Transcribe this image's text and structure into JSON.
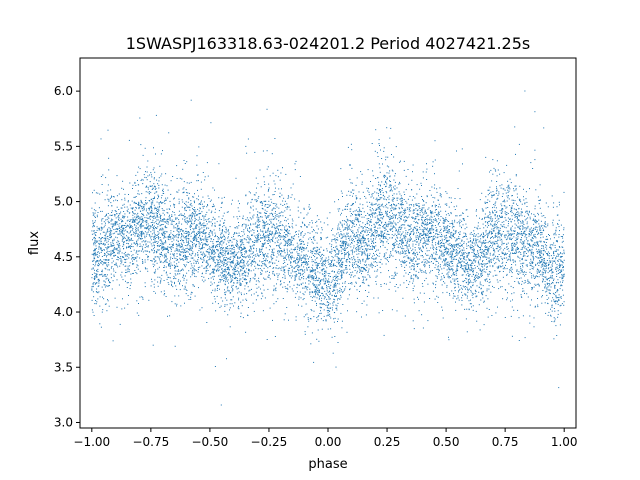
{
  "chart_data": {
    "type": "scatter",
    "title": "1SWASPJ163318.63-024201.2 Period 4027421.25s",
    "xlabel": "phase",
    "ylabel": "flux",
    "xlim": [
      -1.05,
      1.05
    ],
    "ylim": [
      2.95,
      6.3
    ],
    "x_ticks": [
      -1.0,
      -0.75,
      -0.5,
      -0.25,
      0.0,
      0.25,
      0.5,
      0.75,
      1.0
    ],
    "x_tick_labels": [
      "−1.00",
      "−0.75",
      "−0.50",
      "−0.25",
      "0.00",
      "0.25",
      "0.50",
      "0.75",
      "1.00"
    ],
    "y_ticks": [
      3.0,
      3.5,
      4.0,
      4.5,
      5.0,
      5.5,
      6.0
    ],
    "y_tick_labels": [
      "3.0",
      "3.5",
      "4.0",
      "4.5",
      "5.0",
      "5.5",
      "6.0"
    ],
    "grid": false,
    "legend": "none",
    "marker_color": "#1f77b4",
    "series": [
      {
        "phase_bins": [
          -1.0,
          -0.95,
          -0.9,
          -0.85,
          -0.8,
          -0.75,
          -0.7,
          -0.65,
          -0.6,
          -0.55,
          -0.5,
          -0.45,
          -0.4,
          -0.35,
          -0.3,
          -0.25,
          -0.2,
          -0.15,
          -0.1,
          -0.05,
          0.0,
          0.05,
          0.1,
          0.15,
          0.2,
          0.25,
          0.3,
          0.35,
          0.4,
          0.45,
          0.5,
          0.55,
          0.6,
          0.65,
          0.7,
          0.75,
          0.8,
          0.85,
          0.9,
          0.95,
          1.0
        ],
        "flux_center": [
          4.48,
          4.55,
          4.72,
          4.65,
          4.75,
          4.85,
          4.7,
          4.6,
          4.68,
          4.72,
          4.6,
          4.5,
          4.42,
          4.5,
          4.65,
          4.75,
          4.65,
          4.52,
          4.5,
          4.35,
          4.25,
          4.45,
          4.75,
          4.6,
          4.78,
          4.88,
          4.75,
          4.62,
          4.7,
          4.7,
          4.6,
          4.5,
          4.42,
          4.55,
          4.72,
          4.75,
          4.65,
          4.6,
          4.55,
          4.35,
          4.45
        ],
        "flux_spread": [
          0.22,
          0.25,
          0.22,
          0.22,
          0.25,
          0.28,
          0.25,
          0.22,
          0.25,
          0.25,
          0.22,
          0.2,
          0.2,
          0.22,
          0.24,
          0.26,
          0.25,
          0.22,
          0.22,
          0.22,
          0.22,
          0.24,
          0.25,
          0.22,
          0.26,
          0.28,
          0.25,
          0.22,
          0.24,
          0.24,
          0.22,
          0.2,
          0.2,
          0.22,
          0.25,
          0.26,
          0.25,
          0.22,
          0.22,
          0.24,
          0.22
        ],
        "point_count": 9000
      }
    ]
  }
}
